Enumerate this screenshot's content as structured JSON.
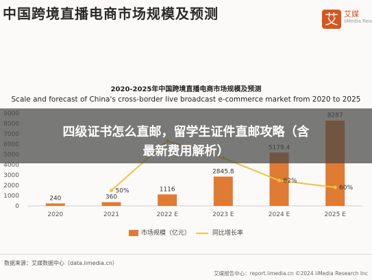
{
  "header": {
    "title": "中国跨境直播电商市场规模及预测"
  },
  "logo": {
    "name": "艾媒",
    "mark": "艾",
    "sub": "iiMedia Research"
  },
  "banner": {
    "line1": "四级证书怎么直邮，留学生证件直邮攻略（含",
    "line2": "最新费用解析）"
  },
  "footer": {
    "source": "数据来源：艾媒数据中心（data.iimedia.cn）",
    "report": "艾媒报告中心：report.iimedia.cn  ©2024 iiMedia Research Inc"
  },
  "colors": {
    "bar": "#e07b33",
    "line": "#f0c040",
    "label": "#555555"
  },
  "chart_data": {
    "type": "bar",
    "title": "2020-2025年中国跨境直播电商市场规模及预测",
    "subtitle": "Scale and forecast of China's cross-border live broadcast e-commerce market from 2020 to 2025",
    "categories": [
      "2020",
      "2021",
      "2022 E",
      "2023 E",
      "2024 E",
      "2025 E"
    ],
    "series": [
      {
        "name": "市场规模（亿元）",
        "type": "bar",
        "axis": "left",
        "values": [
          240,
          360,
          1116,
          2845.8,
          5179.4,
          8287
        ],
        "labels": [
          "240",
          "360",
          "1116",
          "2845.8",
          "5179.4",
          "8287"
        ]
      },
      {
        "name": "同比增长率",
        "type": "line",
        "axis": "right",
        "values": [
          null,
          50,
          210,
          155,
          82,
          60
        ],
        "labels": [
          "",
          "50%",
          "",
          "",
          "82%",
          "60%"
        ]
      }
    ],
    "y_ticks": [
      0,
      1000,
      2000,
      3000,
      4000,
      5000,
      6000,
      7000,
      8000,
      9000
    ],
    "ylim": [
      0,
      9000
    ],
    "y2lim": [
      0,
      300
    ],
    "grid": false,
    "legend": "bottom-center"
  }
}
